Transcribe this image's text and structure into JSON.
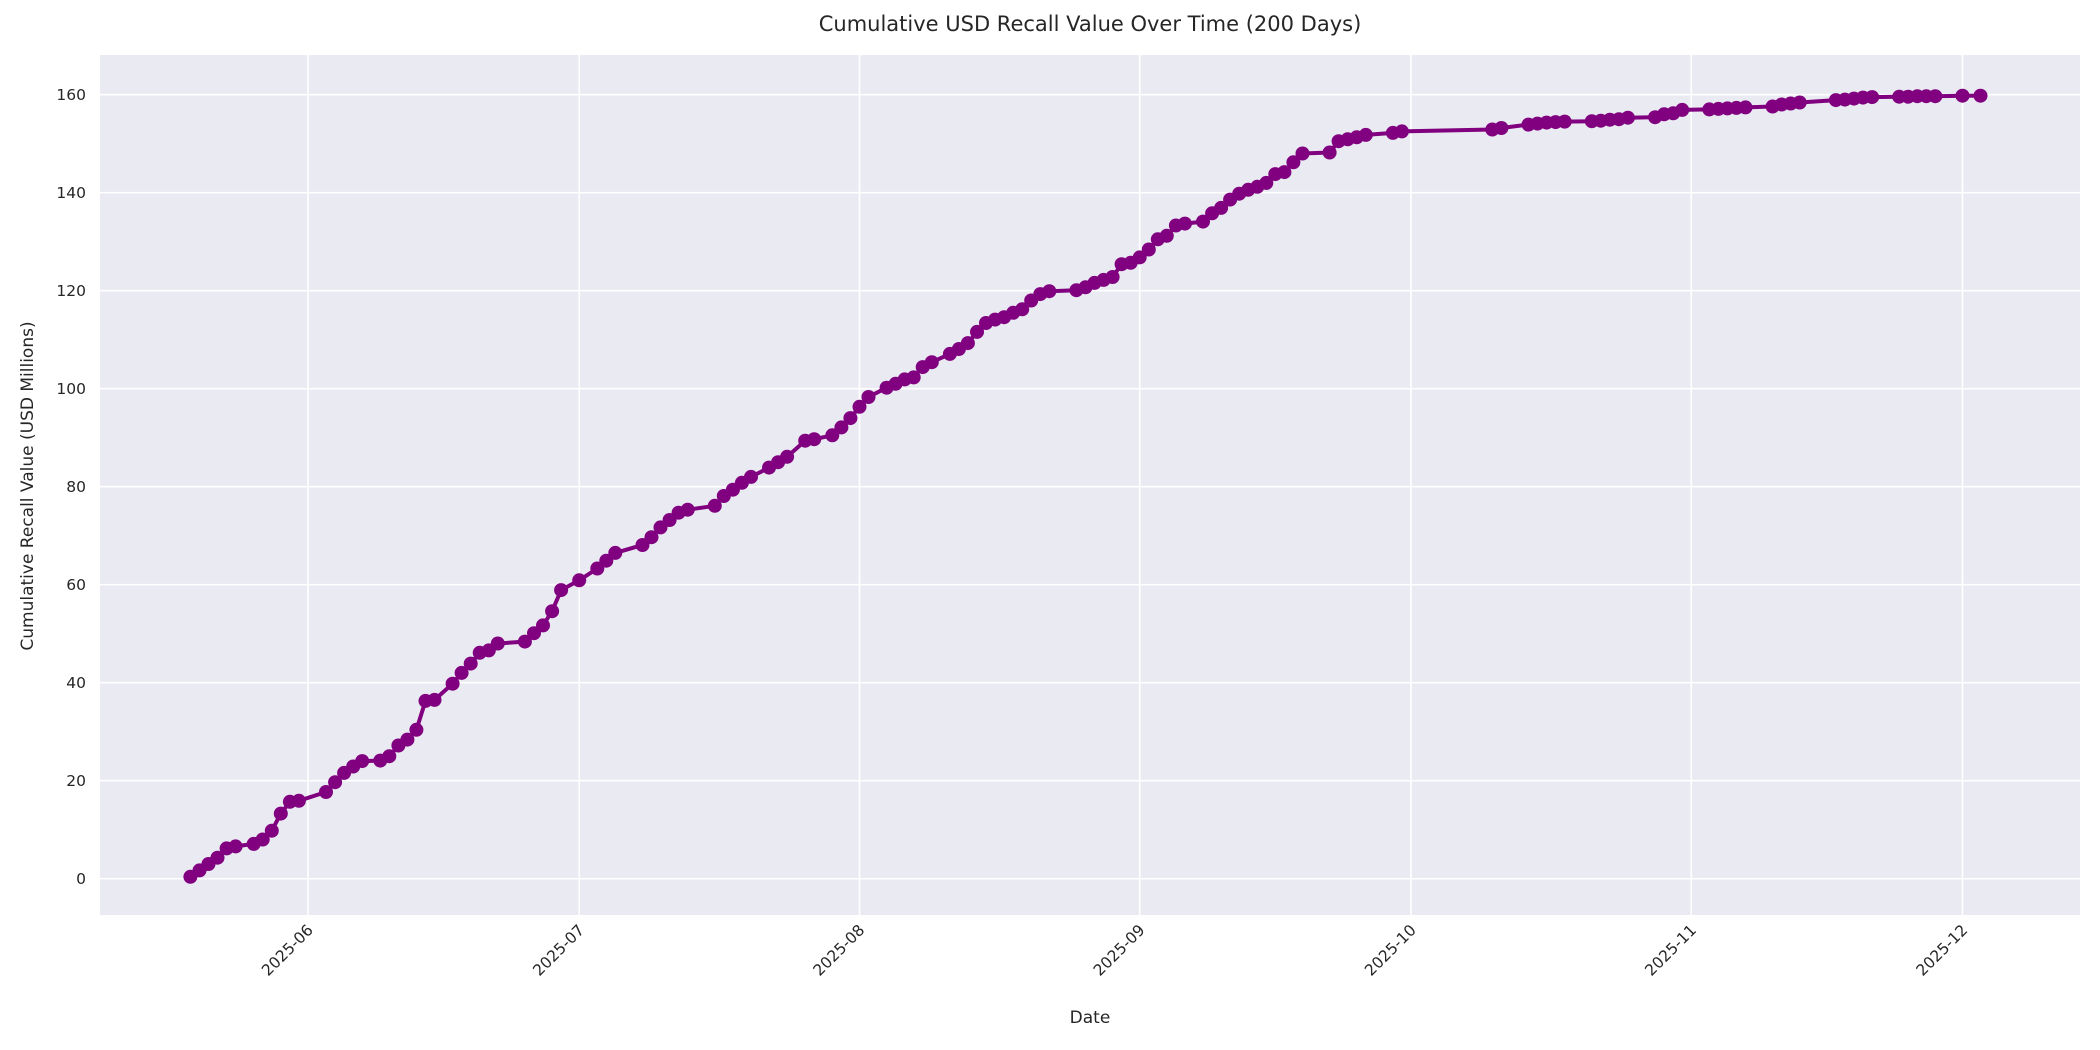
{
  "figure": {
    "title": "Cumulative USD Recall Value Over Time (200 Days)",
    "xlabel": "Date",
    "ylabel": "Cumulative Recall Value (USD Millions)"
  },
  "chart_data": {
    "type": "line",
    "title": "Cumulative USD Recall Value Over Time (200 Days)",
    "xlabel": "Date",
    "ylabel": "Cumulative Recall Value (USD Millions)",
    "legend_position": "none",
    "grid": true,
    "x_tick_labels": [
      "2025-06",
      "2025-07",
      "2025-08",
      "2025-09",
      "2025-10",
      "2025-11",
      "2025-12"
    ],
    "x_tick_dates": [
      "2025-06-01",
      "2025-07-01",
      "2025-08-01",
      "2025-09-01",
      "2025-10-01",
      "2025-11-01",
      "2025-12-01"
    ],
    "y_ticks": [
      0,
      20,
      40,
      60,
      80,
      100,
      120,
      140,
      160
    ],
    "xlim": [
      "2025-05-09",
      "2025-12-14"
    ],
    "ylim": [
      -7.4,
      168.1
    ],
    "style": {
      "line_color": "#800080",
      "marker": "circle",
      "marker_radius": 7,
      "line_width": 4,
      "plot_bg": "#EAEAF2",
      "grid_color": "#FFFFFF",
      "text_color": "#262626",
      "figure_bg": "#FFFFFF"
    },
    "series": [
      {
        "name": "Cumulative USD Recall Value",
        "dates": [
          "2025-05-19",
          "2025-05-20",
          "2025-05-21",
          "2025-05-22",
          "2025-05-23",
          "2025-05-24",
          "2025-05-26",
          "2025-05-27",
          "2025-05-28",
          "2025-05-29",
          "2025-05-30",
          "2025-05-31",
          "2025-06-03",
          "2025-06-04",
          "2025-06-05",
          "2025-06-06",
          "2025-06-07",
          "2025-06-09",
          "2025-06-10",
          "2025-06-11",
          "2025-06-12",
          "2025-06-13",
          "2025-06-14",
          "2025-06-15",
          "2025-06-17",
          "2025-06-18",
          "2025-06-19",
          "2025-06-20",
          "2025-06-21",
          "2025-06-22",
          "2025-06-25",
          "2025-06-26",
          "2025-06-27",
          "2025-06-28",
          "2025-06-29",
          "2025-07-01",
          "2025-07-03",
          "2025-07-04",
          "2025-07-05",
          "2025-07-08",
          "2025-07-09",
          "2025-07-10",
          "2025-07-11",
          "2025-07-12",
          "2025-07-13",
          "2025-07-16",
          "2025-07-17",
          "2025-07-18",
          "2025-07-19",
          "2025-07-20",
          "2025-07-22",
          "2025-07-23",
          "2025-07-24",
          "2025-07-26",
          "2025-07-27",
          "2025-07-29",
          "2025-07-30",
          "2025-07-31",
          "2025-08-01",
          "2025-08-02",
          "2025-08-04",
          "2025-08-05",
          "2025-08-06",
          "2025-08-07",
          "2025-08-08",
          "2025-08-09",
          "2025-08-11",
          "2025-08-12",
          "2025-08-13",
          "2025-08-14",
          "2025-08-15",
          "2025-08-16",
          "2025-08-17",
          "2025-08-18",
          "2025-08-19",
          "2025-08-20",
          "2025-08-21",
          "2025-08-22",
          "2025-08-25",
          "2025-08-26",
          "2025-08-27",
          "2025-08-28",
          "2025-08-29",
          "2025-08-30",
          "2025-08-31",
          "2025-09-01",
          "2025-09-02",
          "2025-09-03",
          "2025-09-04",
          "2025-09-05",
          "2025-09-06",
          "2025-09-08",
          "2025-09-09",
          "2025-09-10",
          "2025-09-11",
          "2025-09-12",
          "2025-09-13",
          "2025-09-14",
          "2025-09-15",
          "2025-09-16",
          "2025-09-17",
          "2025-09-18",
          "2025-09-19",
          "2025-09-22",
          "2025-09-23",
          "2025-09-24",
          "2025-09-25",
          "2025-09-26",
          "2025-09-29",
          "2025-09-30",
          "2025-10-10",
          "2025-10-11",
          "2025-10-14",
          "2025-10-15",
          "2025-10-16",
          "2025-10-17",
          "2025-10-18",
          "2025-10-21",
          "2025-10-22",
          "2025-10-23",
          "2025-10-24",
          "2025-10-25",
          "2025-10-28",
          "2025-10-29",
          "2025-10-30",
          "2025-10-31",
          "2025-11-03",
          "2025-11-04",
          "2025-11-05",
          "2025-11-06",
          "2025-11-07",
          "2025-11-10",
          "2025-11-11",
          "2025-11-12",
          "2025-11-13",
          "2025-11-17",
          "2025-11-18",
          "2025-11-19",
          "2025-11-20",
          "2025-11-21",
          "2025-11-24",
          "2025-11-25",
          "2025-11-26",
          "2025-11-27",
          "2025-11-28",
          "2025-12-01",
          "2025-12-03"
        ],
        "values": [
          0.4,
          1.7,
          3.0,
          4.3,
          6.2,
          6.6,
          7.1,
          8.0,
          9.8,
          13.3,
          15.7,
          15.9,
          17.7,
          19.7,
          21.6,
          22.9,
          24.0,
          24.1,
          25.0,
          27.2,
          28.4,
          30.4,
          36.3,
          36.5,
          39.8,
          42.0,
          43.9,
          46.1,
          46.6,
          48.0,
          48.4,
          50.1,
          51.7,
          54.6,
          58.9,
          60.9,
          63.3,
          64.9,
          66.5,
          68.1,
          69.7,
          71.7,
          73.2,
          74.7,
          75.3,
          76.1,
          78.1,
          79.4,
          80.8,
          82.0,
          83.9,
          85.0,
          86.1,
          89.4,
          89.7,
          90.5,
          92.1,
          94.0,
          96.3,
          98.3,
          100.2,
          101.0,
          101.9,
          102.3,
          104.4,
          105.4,
          107.1,
          108.1,
          109.3,
          111.6,
          113.4,
          114.1,
          114.6,
          115.5,
          116.2,
          118.0,
          119.3,
          119.9,
          120.1,
          120.7,
          121.6,
          122.2,
          122.8,
          125.4,
          125.7,
          126.8,
          128.4,
          130.5,
          131.2,
          133.3,
          133.7,
          134.1,
          135.8,
          136.9,
          138.6,
          139.8,
          140.6,
          141.2,
          142.0,
          143.8,
          144.2,
          146.2,
          148.0,
          148.2,
          150.5,
          150.9,
          151.3,
          151.8,
          152.2,
          152.5,
          152.9,
          153.2,
          153.9,
          154.1,
          154.3,
          154.4,
          154.5,
          154.6,
          154.7,
          154.9,
          155.0,
          155.3,
          155.4,
          156.0,
          156.2,
          156.9,
          157.0,
          157.1,
          157.2,
          157.3,
          157.4,
          157.6,
          158.0,
          158.2,
          158.4,
          158.9,
          159.0,
          159.2,
          159.4,
          159.5,
          159.6,
          159.6,
          159.7,
          159.7,
          159.7,
          159.8,
          159.8
        ]
      }
    ]
  }
}
